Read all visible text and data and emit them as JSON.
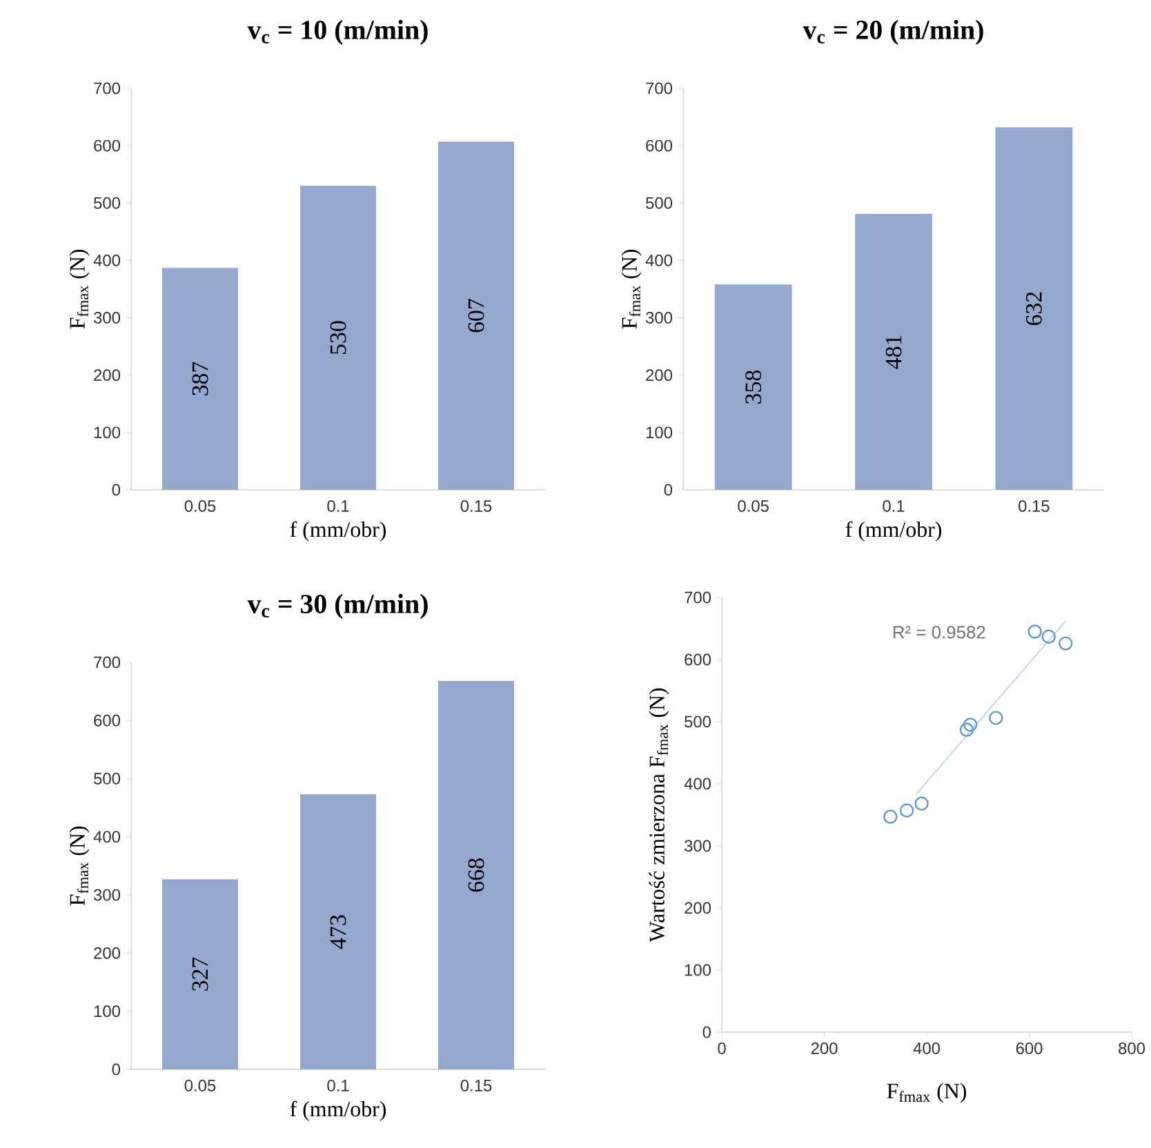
{
  "chart_data": [
    {
      "type": "bar",
      "title": "v$_{c}$ = 10 (m/min)",
      "xlabel": "f (mm/obr)",
      "ylabel": "F$_{fmax}$ (N)",
      "categories": [
        "0.05",
        "0.1",
        "0.15"
      ],
      "values": [
        387,
        530,
        607
      ],
      "color": "#95a9cf",
      "ylim": [
        0,
        700
      ],
      "yticks": [
        0,
        100,
        200,
        300,
        400,
        500,
        600,
        700
      ],
      "data_labels": true
    },
    {
      "type": "bar",
      "title": "v$_{c}$ = 20 (m/min)",
      "xlabel": "f (mm/obr)",
      "ylabel": "F$_{fmax}$ (N)",
      "categories": [
        "0.05",
        "0.1",
        "0.15"
      ],
      "values": [
        358,
        481,
        632
      ],
      "color": "#95a9cf",
      "ylim": [
        0,
        700
      ],
      "yticks": [
        0,
        100,
        200,
        300,
        400,
        500,
        600,
        700
      ],
      "data_labels": true
    },
    {
      "type": "bar",
      "title": "v$_{c}$ = 30 (m/min)",
      "xlabel": "f (mm/obr)",
      "ylabel": "F$_{fmax}$ (N)",
      "categories": [
        "0.05",
        "0.1",
        "0.15"
      ],
      "values": [
        327,
        473,
        668
      ],
      "color": "#95a9cf",
      "ylim": [
        0,
        700
      ],
      "yticks": [
        0,
        100,
        200,
        300,
        400,
        500,
        600,
        700
      ],
      "data_labels": true
    },
    {
      "type": "scatter",
      "xlabel": "F$_{fmax}$ (N)",
      "ylabel": "Wartość zmierzona F$_{fmax}$ (N)",
      "xlim": [
        0,
        800
      ],
      "xticks": [
        0,
        200,
        400,
        600,
        800
      ],
      "ylim": [
        0,
        700
      ],
      "yticks": [
        0,
        100,
        200,
        300,
        400,
        500,
        600,
        700
      ],
      "annotations": [
        "R² = 0.9582"
      ],
      "series": [
        {
          "type": "scatter",
          "marker": "circle",
          "color": "#5b9bd5",
          "x": [
            329,
            361,
            390,
            478,
            485,
            535,
            611,
            638,
            671
          ],
          "values": [
            347,
            357,
            368,
            487,
            495,
            506,
            645,
            637,
            626
          ]
        },
        {
          "type": "line",
          "color": "#9dc3e6",
          "x": [
            379,
            671
          ],
          "values": [
            383,
            662
          ]
        }
      ]
    }
  ]
}
